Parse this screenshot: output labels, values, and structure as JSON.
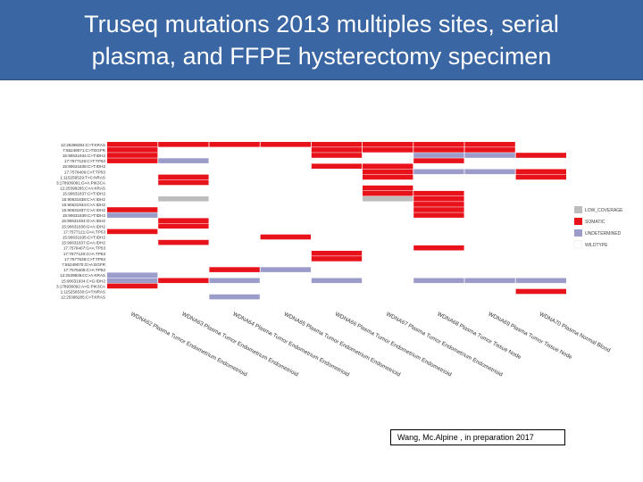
{
  "header": {
    "title_line1": "Truseq mutations 2013 multiples sites, serial",
    "title_line2": "plasma, and FFPE hysterectomy specimen"
  },
  "citation": "Wang, Mc.Alpine , in preparation 2017",
  "chart_data": {
    "type": "heatmap",
    "title": "",
    "rows": [
      "12:25398284:C>T:KRAS",
      "7:55249071:C>T:EGFR",
      "15:90631934:C>T:IDH2",
      "17:7577120:C>T:TP53",
      "15:90631838:C>T:IDH2",
      "17:7578406:C>T:TP53",
      "1:115256529:T>C:NRAS",
      "3:178936091:G>A:PIK3CA",
      "12:25398285:C>A:KRAS",
      "15:90631837:C>T:IDH2",
      "15:90631838:C>A:IDH2",
      "15:90631934:C>A:IDH2",
      "15:90631837:C>A:IDH2",
      "15:90631839:C>T:IDH2",
      "15:90631934:G>A:IDH2",
      "15:90631838:G>A:IDH2",
      "17:7577121:G>A:TP53",
      "15:90631935:C>T:IDH2",
      "15:90631837:G>A:IDH2",
      "17:7578407:G>A:TP53",
      "17:7577120:G>A:TP53",
      "17:7577538:C>T:TP53",
      "7:55249070:G>A:EGFR",
      "17:7578406:C>A:TP53",
      "12:25398284:C>A:KRAS",
      "15:90631934:C>G:IDH2",
      "3:178936092:A>G:PIK3CA",
      "1:115256530:G>T:NRAS",
      "12:25398285:C>T:KRAS"
    ],
    "columns": [
      "WDNA62 Plasma Tumor Endometrium Endometrioid",
      "WDNA63 Plasma Tumor Endometrium Endometrioid",
      "WDNA64 Plasma Tumor Endometrium Endometrioid",
      "WDNA65 Plasma Tumor Endometrium Endometrioid",
      "WDNA66 Plasma Tumor Endometrium Endometrioid",
      "WDNA67 Plasma Tumor Endometrium Endometrioid",
      "WDNA68 Plasma Tumor Tissue Node",
      "WDNA69 Plasma Tumor Tissue Node",
      "WDNA70 Plasma Normal Blood"
    ],
    "categories": [
      "LOW_COVERAGE",
      "SOMATIC",
      "UNDETERMINED",
      "WILDTYPE"
    ],
    "legend_title": "",
    "legend_position": "right",
    "colors": {
      "LOW_COVERAGE": "#bdbdbd",
      "SOMATIC": "#e8121a",
      "UNDETERMINED": "#9c9ccb",
      "WILDTYPE": "#ffffff"
    },
    "cells": [
      [
        "S",
        "S",
        "S",
        "S",
        "S",
        "S",
        "S",
        "S",
        "W"
      ],
      [
        "S",
        "W",
        "W",
        "W",
        "S",
        "S",
        "S",
        "S",
        "W"
      ],
      [
        "S",
        "W",
        "W",
        "W",
        "S",
        "W",
        "U",
        "U",
        "S"
      ],
      [
        "S",
        "U",
        "W",
        "W",
        "W",
        "W",
        "S",
        "W",
        "W"
      ],
      [
        "W",
        "W",
        "W",
        "W",
        "S",
        "S",
        "W",
        "W",
        "W"
      ],
      [
        "W",
        "W",
        "W",
        "W",
        "W",
        "S",
        "U",
        "U",
        "S"
      ],
      [
        "W",
        "S",
        "W",
        "W",
        "W",
        "S",
        "W",
        "W",
        "S"
      ],
      [
        "W",
        "S",
        "W",
        "W",
        "W",
        "W",
        "W",
        "W",
        "W"
      ],
      [
        "W",
        "W",
        "W",
        "W",
        "W",
        "S",
        "W",
        "W",
        "W"
      ],
      [
        "W",
        "W",
        "W",
        "W",
        "W",
        "S",
        "S",
        "W",
        "W"
      ],
      [
        "W",
        "L",
        "W",
        "W",
        "W",
        "L",
        "S",
        "W",
        "W"
      ],
      [
        "W",
        "W",
        "W",
        "W",
        "W",
        "W",
        "S",
        "W",
        "W"
      ],
      [
        "S",
        "W",
        "W",
        "W",
        "W",
        "W",
        "S",
        "W",
        "W"
      ],
      [
        "U",
        "W",
        "W",
        "W",
        "W",
        "W",
        "S",
        "W",
        "W"
      ],
      [
        "W",
        "S",
        "W",
        "W",
        "W",
        "W",
        "W",
        "W",
        "W"
      ],
      [
        "W",
        "S",
        "W",
        "W",
        "W",
        "W",
        "W",
        "W",
        "W"
      ],
      [
        "S",
        "W",
        "W",
        "W",
        "W",
        "W",
        "W",
        "W",
        "W"
      ],
      [
        "W",
        "W",
        "W",
        "S",
        "W",
        "W",
        "W",
        "W",
        "W"
      ],
      [
        "W",
        "S",
        "W",
        "W",
        "W",
        "W",
        "W",
        "W",
        "W"
      ],
      [
        "W",
        "W",
        "W",
        "W",
        "W",
        "W",
        "S",
        "W",
        "W"
      ],
      [
        "W",
        "W",
        "W",
        "W",
        "S",
        "W",
        "W",
        "W",
        "W"
      ],
      [
        "W",
        "W",
        "W",
        "W",
        "S",
        "W",
        "W",
        "W",
        "W"
      ],
      [
        "W",
        "W",
        "W",
        "W",
        "W",
        "W",
        "W",
        "W",
        "W"
      ],
      [
        "W",
        "W",
        "S",
        "U",
        "W",
        "W",
        "W",
        "W",
        "W"
      ],
      [
        "U",
        "W",
        "W",
        "W",
        "W",
        "W",
        "W",
        "W",
        "W"
      ],
      [
        "U",
        "S",
        "U",
        "W",
        "U",
        "W",
        "U",
        "U",
        "U"
      ],
      [
        "S",
        "W",
        "W",
        "W",
        "W",
        "W",
        "W",
        "W",
        "W"
      ],
      [
        "W",
        "W",
        "W",
        "W",
        "W",
        "W",
        "W",
        "W",
        "S"
      ],
      [
        "W",
        "W",
        "U",
        "W",
        "W",
        "W",
        "W",
        "W",
        "W"
      ]
    ]
  }
}
